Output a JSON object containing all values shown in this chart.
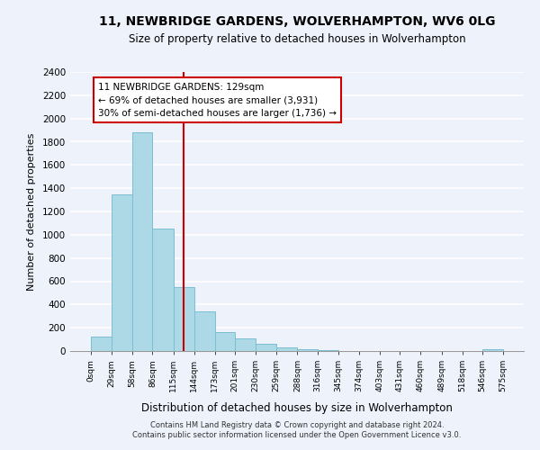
{
  "title": "11, NEWBRIDGE GARDENS, WOLVERHAMPTON, WV6 0LG",
  "subtitle": "Size of property relative to detached houses in Wolverhampton",
  "xlabel": "Distribution of detached houses by size in Wolverhampton",
  "ylabel": "Number of detached properties",
  "bin_labels": [
    "0sqm",
    "29sqm",
    "58sqm",
    "86sqm",
    "115sqm",
    "144sqm",
    "173sqm",
    "201sqm",
    "230sqm",
    "259sqm",
    "288sqm",
    "316sqm",
    "345sqm",
    "374sqm",
    "403sqm",
    "431sqm",
    "460sqm",
    "489sqm",
    "518sqm",
    "546sqm",
    "575sqm"
  ],
  "bar_values": [
    125,
    1350,
    1880,
    1050,
    550,
    340,
    165,
    110,
    60,
    30,
    15,
    5,
    2,
    1,
    0,
    0,
    0,
    0,
    0,
    13
  ],
  "bar_color": "#add8e6",
  "bar_edge_color": "#7bbfd4",
  "property_line_x": 129,
  "property_line_label": "11 NEWBRIDGE GARDENS: 129sqm",
  "annotation_line1": "← 69% of detached houses are smaller (3,931)",
  "annotation_line2": "30% of semi-detached houses are larger (1,736) →",
  "annotation_box_color": "#ffffff",
  "annotation_box_edge": "#cc0000",
  "ylim": [
    0,
    2400
  ],
  "yticks": [
    0,
    200,
    400,
    600,
    800,
    1000,
    1200,
    1400,
    1600,
    1800,
    2000,
    2200,
    2400
  ],
  "footer_line1": "Contains HM Land Registry data © Crown copyright and database right 2024.",
  "footer_line2": "Contains public sector information licensed under the Open Government Licence v3.0.",
  "bg_color": "#eef2fb"
}
